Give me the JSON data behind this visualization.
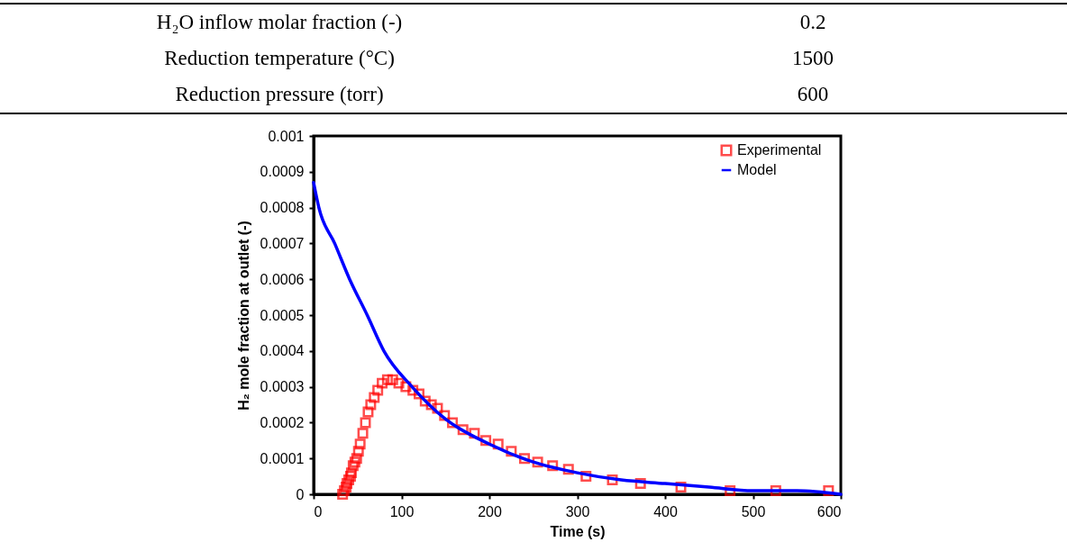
{
  "chart_data": {
    "type": "scatter",
    "xlabel": "Time (s)",
    "ylabel": "H₂ mole fraction at outlet (-)",
    "annotations": [
      "H₂O inflow molar fraction (-)",
      "0.2",
      "Reduction temperature (°C)",
      "1500",
      "Reduction pressure (torr)",
      "600"
    ],
    "xlim": [
      0,
      600
    ],
    "xticks": [
      0,
      100,
      200,
      300,
      400,
      500,
      600
    ],
    "ylim": [
      0,
      0.001
    ],
    "yticks": [
      0,
      0.0001,
      0.0002,
      0.0003,
      0.0004,
      0.0005,
      0.0006,
      0.0007,
      0.0008,
      0.0009,
      0.001
    ],
    "legend": "top right",
    "grid": false,
    "series": [
      {
        "name": "Experimental",
        "type": "scatter",
        "marker": "square",
        "color": "#ff0000",
        "x": [
          33,
          35,
          37,
          38,
          40,
          42,
          43,
          45,
          47,
          49,
          51,
          53,
          56,
          59,
          62,
          65,
          69,
          73,
          78,
          84,
          90,
          97,
          105,
          113,
          120,
          127,
          134,
          141,
          149,
          158,
          170,
          183,
          196,
          210,
          225,
          240,
          255,
          272,
          290,
          310,
          340,
          372,
          418,
          474,
          526,
          586
        ],
        "values": [
          0,
          1e-05,
          2e-05,
          3e-05,
          4e-05,
          5e-05,
          6e-05,
          8e-05,
          9e-05,
          0.0001,
          0.00012,
          0.00014,
          0.00017,
          0.0002,
          0.00023,
          0.00025,
          0.00027,
          0.00029,
          0.00031,
          0.00032,
          0.00032,
          0.00031,
          0.0003,
          0.00029,
          0.00028,
          0.00026,
          0.00025,
          0.00024,
          0.00022,
          0.0002,
          0.00018,
          0.00017,
          0.00015,
          0.00014,
          0.00012,
          0.0001,
          9e-05,
          8e-05,
          7e-05,
          5e-05,
          4e-05,
          3e-05,
          2e-05,
          1e-05,
          1e-05,
          1e-05
        ]
      },
      {
        "name": "Model",
        "type": "line",
        "marker": "none",
        "line_style": "solid",
        "color": "#0000ff",
        "x": [
          0,
          6,
          24,
          41,
          61,
          80,
          112,
          150,
          200,
          250,
          300,
          350,
          400,
          450,
          500,
          550,
          600
        ],
        "values": [
          0.00087,
          0.0008,
          0.0007,
          0.0006,
          0.0005,
          0.0004,
          0.0003,
          0.00021,
          0.00014,
          9e-05,
          6e-05,
          4e-05,
          3e-05,
          2e-05,
          1e-05,
          1e-05,
          0
        ]
      }
    ]
  }
}
